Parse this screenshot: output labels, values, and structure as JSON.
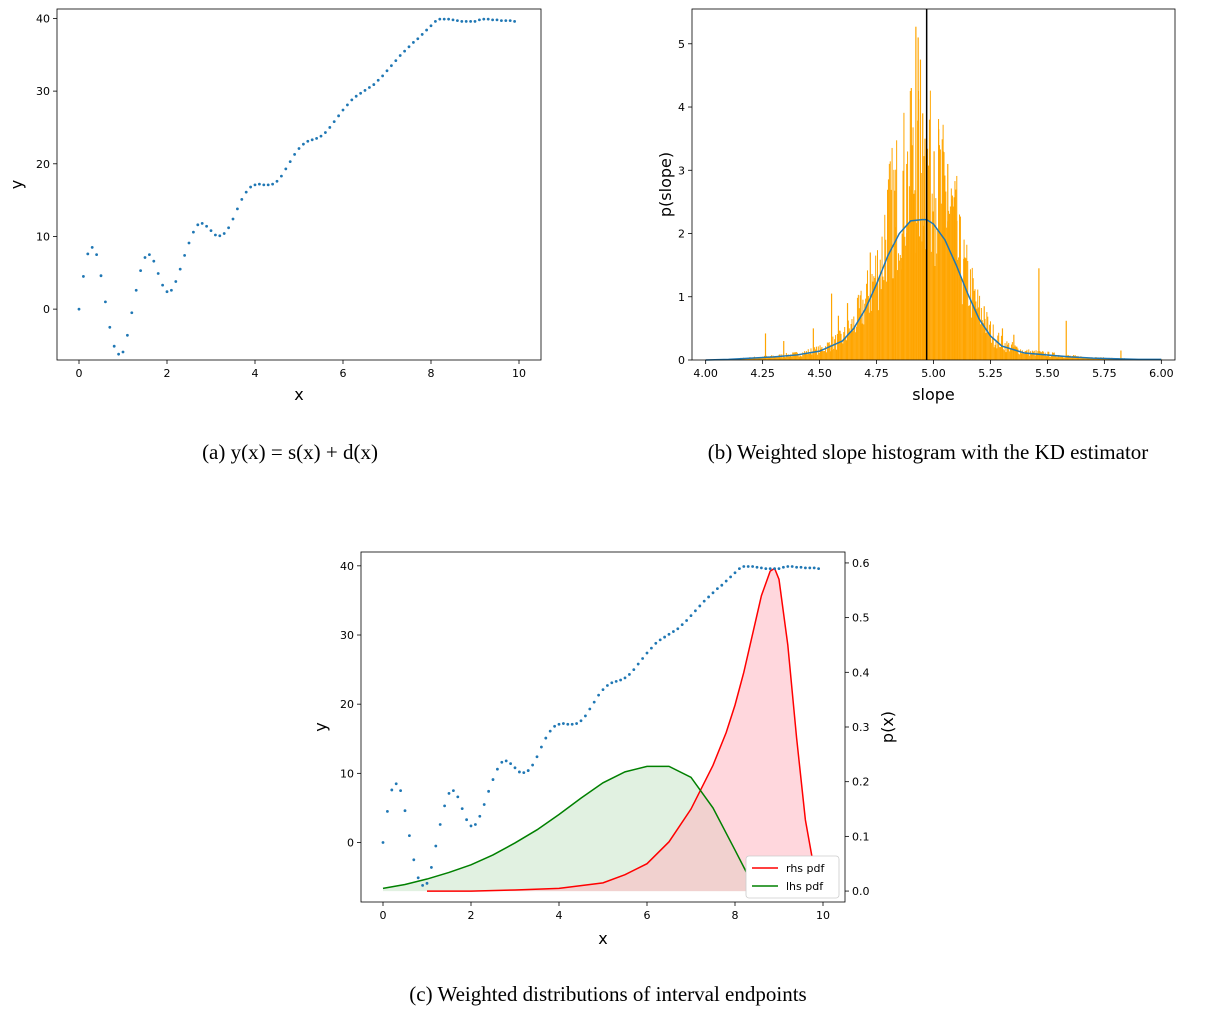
{
  "figure": {
    "caption_a": "(a) y(x) = s(x) + d(x)",
    "caption_b": "(b) Weighted slope histogram with the KD estimator",
    "caption_c": "(c) Weighted distributions of interval endpoints"
  },
  "chart_data": [
    {
      "type": "scatter",
      "xlabel": "x",
      "ylabel": "y",
      "xlim": [
        -0.5,
        10.5
      ],
      "ylim": [
        -7,
        41.3
      ],
      "xticks": [
        "0",
        "2",
        "4",
        "6",
        "8",
        "10"
      ],
      "yticks": [
        "0",
        "10",
        "20",
        "30",
        "40"
      ],
      "series": [
        {
          "color": "#1f77b4",
          "x": [
            0,
            0.1,
            0.2,
            0.3,
            0.4,
            0.5,
            0.6,
            0.7,
            0.8,
            0.9,
            1,
            1.1,
            1.2,
            1.3,
            1.4,
            1.5,
            1.6,
            1.7,
            1.8,
            1.9,
            2,
            2.1,
            2.2,
            2.3,
            2.4,
            2.5,
            2.6,
            2.7,
            2.8,
            2.9,
            3,
            3.1,
            3.2,
            3.3,
            3.4,
            3.5,
            3.6,
            3.7,
            3.8,
            3.9,
            4,
            4.1,
            4.2,
            4.3,
            4.4,
            4.5,
            4.6,
            4.7,
            4.8,
            4.9,
            5,
            5.1,
            5.2,
            5.3,
            5.4,
            5.5,
            5.6,
            5.7,
            5.8,
            5.9,
            6,
            6.1,
            6.2,
            6.3,
            6.4,
            6.5,
            6.6,
            6.7,
            6.8,
            6.9,
            7,
            7.1,
            7.2,
            7.3,
            7.4,
            7.5,
            7.6,
            7.7,
            7.8,
            7.9,
            8,
            8.1,
            8.2,
            8.3,
            8.4,
            8.5,
            8.6,
            8.7,
            8.8,
            8.9,
            9,
            9.1,
            9.2,
            9.3,
            9.4,
            9.5,
            9.6,
            9.7,
            9.8,
            9.9
          ],
          "y": [
            0,
            4.5,
            7.6,
            8.5,
            7.5,
            4.6,
            1,
            -2.5,
            -5.1,
            -6.2,
            -5.9,
            -3.6,
            -0.5,
            2.6,
            5.3,
            7.1,
            7.5,
            6.6,
            4.9,
            3.3,
            2.4,
            2.6,
            3.8,
            5.5,
            7.4,
            9.1,
            10.6,
            11.6,
            11.8,
            11.4,
            10.8,
            10.2,
            10.1,
            10.4,
            11.2,
            12.4,
            13.8,
            15.1,
            16.1,
            16.8,
            17.1,
            17.2,
            17.1,
            17.1,
            17.2,
            17.6,
            18.3,
            19.3,
            20.3,
            21.3,
            22.1,
            22.7,
            23.1,
            23.3,
            23.5,
            23.8,
            24.3,
            25,
            25.8,
            26.6,
            27.4,
            28.1,
            28.8,
            29.3,
            29.7,
            30.1,
            30.5,
            30.9,
            31.5,
            32.1,
            32.8,
            33.5,
            34.2,
            34.9,
            35.5,
            36.1,
            36.7,
            37.2,
            37.8,
            38.4,
            39,
            39.6,
            39.9,
            39.9,
            39.9,
            39.8,
            39.7,
            39.6,
            39.6,
            39.6,
            39.6,
            39.8,
            39.9,
            39.9,
            39.8,
            39.8,
            39.7,
            39.7,
            39.7,
            39.6
          ]
        }
      ]
    },
    {
      "type": "bar",
      "xlabel": "slope",
      "ylabel": "p(slope)",
      "xlim": [
        3.94,
        6.06
      ],
      "ylim": [
        0,
        5.55
      ],
      "xticks": [
        "4.00",
        "4.25",
        "4.50",
        "4.75",
        "5.00",
        "5.25",
        "5.50",
        "5.75",
        "6.00"
      ],
      "yticks": [
        "0",
        "1",
        "2",
        "3",
        "4",
        "5"
      ],
      "histogram_color": "#ffa500",
      "kde_color": "#1f77b4",
      "vline_x": 4.97,
      "vline_color": "#000000",
      "kde": {
        "x": [
          4.0,
          4.1,
          4.2,
          4.3,
          4.4,
          4.5,
          4.6,
          4.65,
          4.7,
          4.75,
          4.8,
          4.85,
          4.9,
          4.95,
          4.97,
          5.0,
          5.05,
          5.1,
          5.15,
          5.2,
          5.25,
          5.3,
          5.4,
          5.5,
          5.6,
          5.7,
          5.8,
          5.9,
          6.0
        ],
        "y": [
          0.0,
          0.01,
          0.03,
          0.05,
          0.08,
          0.14,
          0.3,
          0.5,
          0.8,
          1.2,
          1.65,
          2.0,
          2.2,
          2.22,
          2.22,
          2.15,
          1.9,
          1.5,
          1.05,
          0.65,
          0.38,
          0.22,
          0.11,
          0.08,
          0.05,
          0.03,
          0.02,
          0.01,
          0.01
        ]
      },
      "histogram_spikes": {
        "x": [
          4.26,
          4.34,
          4.47,
          4.55,
          4.58,
          4.62,
          4.68,
          4.72,
          4.76,
          4.8,
          4.83,
          4.86,
          4.88,
          4.9,
          4.92,
          4.93,
          4.94,
          4.95,
          4.96,
          4.98,
          5.0,
          5.02,
          5.04,
          5.06,
          5.08,
          5.1,
          5.13,
          5.17,
          5.22,
          5.3,
          5.35,
          5.46,
          5.58,
          5.82
        ],
        "y": [
          0.42,
          0.3,
          0.5,
          1.05,
          0.7,
          0.9,
          0.7,
          1.7,
          1.3,
          1.5,
          2.1,
          2.0,
          3.1,
          4.3,
          5.27,
          5.1,
          4.75,
          3.9,
          3.5,
          3.8,
          3.3,
          3.65,
          3.3,
          3.1,
          2.6,
          2.2,
          1.6,
          0.9,
          0.85,
          0.5,
          0.4,
          1.45,
          0.62,
          0.15
        ]
      }
    },
    {
      "type": "line",
      "xlabel": "x",
      "ylabel": "y",
      "ylabel_right": "p(x)",
      "xlim": [
        -0.5,
        10.5
      ],
      "ylim": [
        -8.6,
        42
      ],
      "ylim_right": [
        -0.02,
        0.62
      ],
      "xticks": [
        "0",
        "2",
        "4",
        "6",
        "8",
        "10"
      ],
      "yticks": [
        "0",
        "10",
        "20",
        "30",
        "40"
      ],
      "yticks_right": [
        "0.0",
        "0.1",
        "0.2",
        "0.3",
        "0.4",
        "0.5",
        "0.6"
      ],
      "legend": [
        "rhs pdf",
        "lhs pdf"
      ],
      "legend_position": "lower right",
      "series": [
        {
          "name": "rhs pdf",
          "color": "#ff0000",
          "fill": "#ffb6c1",
          "x": [
            1.0,
            2.0,
            3.0,
            4.0,
            4.5,
            5.0,
            5.5,
            6.0,
            6.5,
            7.0,
            7.5,
            7.8,
            8.0,
            8.2,
            8.4,
            8.6,
            8.8,
            8.9,
            9.0,
            9.2,
            9.4,
            9.6,
            9.8
          ],
          "y": [
            0.0,
            0.0,
            0.002,
            0.005,
            0.01,
            0.015,
            0.03,
            0.05,
            0.09,
            0.15,
            0.23,
            0.29,
            0.34,
            0.4,
            0.47,
            0.54,
            0.585,
            0.59,
            0.57,
            0.45,
            0.28,
            0.13,
            0.04
          ]
        },
        {
          "name": "lhs pdf",
          "color": "#008000",
          "fill": "#c8e6c8",
          "x": [
            0.0,
            0.5,
            1.0,
            1.5,
            2.0,
            2.5,
            3.0,
            3.5,
            4.0,
            4.5,
            5.0,
            5.5,
            6.0,
            6.5,
            7.0,
            7.5,
            8.0,
            8.3
          ],
          "y": [
            0.005,
            0.012,
            0.022,
            0.034,
            0.048,
            0.066,
            0.088,
            0.112,
            0.14,
            0.17,
            0.198,
            0.218,
            0.228,
            0.228,
            0.208,
            0.152,
            0.075,
            0.028
          ]
        }
      ],
      "scatter": {
        "color": "#1f77b4",
        "source": "same as panel (a)"
      }
    }
  ]
}
